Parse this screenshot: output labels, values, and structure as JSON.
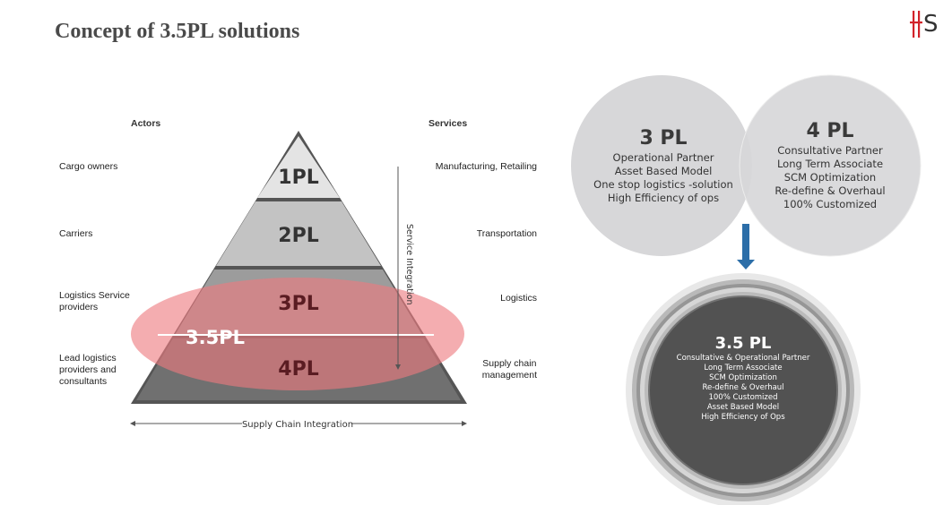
{
  "title": "Concept of 3.5PL solutions",
  "logo_text": "HS",
  "colors": {
    "logo_red": "#d2232a",
    "layer_1pl": "#e4e4e4",
    "layer_2pl": "#c3c3c3",
    "layer_3pl": "#9c9c9c",
    "layer_4pl": "#707070",
    "highlight": "#ee7b80",
    "arrow_blue": "#2c6ea8"
  },
  "pyramid": {
    "actors_header": "Actors",
    "services_header": "Services",
    "levels": [
      "1PL",
      "2PL",
      "3PL",
      "4PL"
    ],
    "highlight_label": "3.5PL",
    "actors": [
      "Cargo owners",
      "Carriers",
      "Logistics Service\nproviders",
      "Lead logistics\nproviders and\nconsultants"
    ],
    "services": [
      "Manufacturing, Retailing",
      "Transportation",
      "Logistics",
      "Supply chain\nmanagement"
    ],
    "vertical_axis_label": "Service Integration",
    "horizontal_axis_label": "Supply Chain Integration"
  },
  "venn": {
    "left": {
      "title": "3 PL",
      "lines": [
        "Operational Partner",
        "Asset Based Model",
        "One stop logistics -solution",
        "High Efficiency of ops"
      ]
    },
    "right": {
      "title": "4 PL",
      "lines": [
        "Consultative Partner",
        "Long Term Associate",
        "SCM Optimization",
        "Re-define & Overhaul",
        "100% Customized"
      ]
    }
  },
  "result": {
    "title": "3.5 PL",
    "lines": [
      "Consultative & Operational Partner",
      "Long Term Associate",
      "SCM Optimization",
      "Re-define & Overhaul",
      "100% Customized",
      "Asset Based Model",
      "High Efficiency of Ops"
    ]
  }
}
